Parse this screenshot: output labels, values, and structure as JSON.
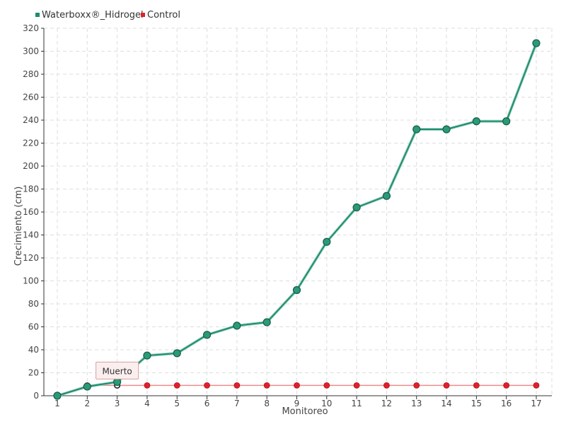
{
  "chart_data": {
    "type": "line",
    "title": "",
    "xlabel": "Monitoreo",
    "ylabel": "Crecimiento (cm)",
    "categories": [
      "1",
      "2",
      "3",
      "4",
      "5",
      "6",
      "7",
      "8",
      "9",
      "10",
      "11",
      "12",
      "13",
      "14",
      "15",
      "16",
      "17"
    ],
    "ylim": [
      0,
      320
    ],
    "yticks": [
      0,
      20,
      40,
      60,
      80,
      100,
      120,
      140,
      160,
      180,
      200,
      220,
      240,
      260,
      280,
      300,
      320
    ],
    "grid": true,
    "legend_position": "top-left",
    "series": [
      {
        "name": "Waterboxx®_Hidrogel",
        "color": "#1f8c6e",
        "values": [
          0,
          8,
          12,
          35,
          37,
          53,
          61,
          64,
          92,
          134,
          164,
          174,
          232,
          232,
          239,
          239,
          307
        ]
      },
      {
        "name": "Control",
        "color": "#e0202a",
        "values": [
          0,
          9,
          9,
          9,
          9,
          9,
          9,
          9,
          9,
          9,
          9,
          9,
          9,
          9,
          9,
          9,
          9
        ]
      }
    ],
    "annotations": [
      {
        "text": "Muerto",
        "series": 1,
        "index": 2
      }
    ]
  }
}
